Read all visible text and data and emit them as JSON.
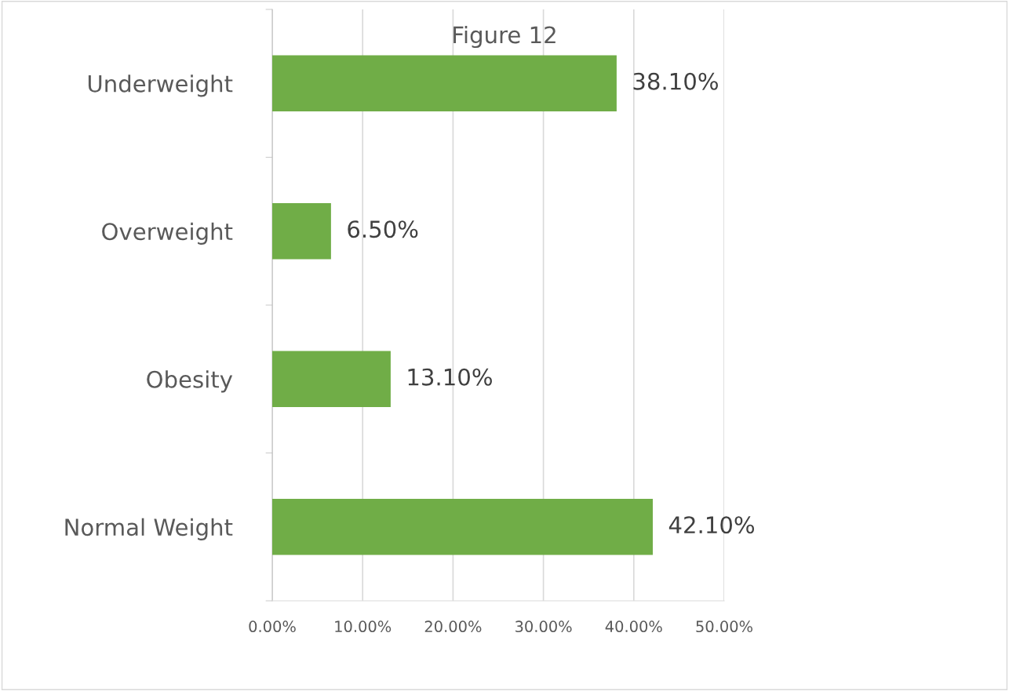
{
  "chart_data": {
    "type": "bar",
    "orientation": "horizontal",
    "title": "Figure 12",
    "categories": [
      "Underweight",
      "Overweight",
      "Obesity",
      "Normal Weight"
    ],
    "values": [
      38.1,
      6.5,
      13.1,
      42.1
    ],
    "value_labels": [
      "38.10%",
      "6.50%",
      "13.10%",
      "42.10%"
    ],
    "color": "#70ad47",
    "xlim": [
      0,
      50
    ],
    "xticks": [
      {
        "value": 0,
        "label": "0.00%"
      },
      {
        "value": 10,
        "label": "10.00%"
      },
      {
        "value": 20,
        "label": "20.00%"
      },
      {
        "value": 30,
        "label": "30.00%"
      },
      {
        "value": 40,
        "label": "40.00%"
      },
      {
        "value": 50,
        "label": "50.00%"
      }
    ],
    "grid": "x",
    "legend": false
  }
}
